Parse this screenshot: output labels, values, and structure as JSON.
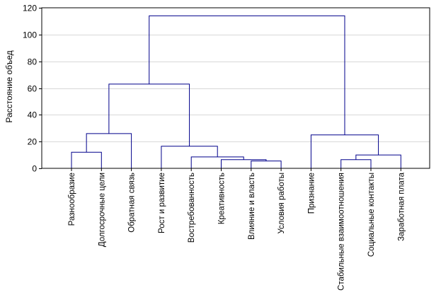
{
  "chart_data": {
    "type": "dendrogram",
    "title": "",
    "xlabel": "",
    "ylabel": "Расстояние объед",
    "ylim": [
      0,
      120
    ],
    "yticks": [
      0,
      20,
      40,
      60,
      80,
      100,
      120
    ],
    "grid": true,
    "leaves": [
      "Разнообразие",
      "Долгосрочные цели",
      "Обратная связь",
      "Рост и развитие",
      "Востребованность",
      "Креативность",
      "Влияние и власть",
      "Условия работы",
      "Признание",
      "Стабильные взаимоотношения",
      "Социальные контакты",
      "Заработная плата"
    ],
    "merges": [
      {
        "id": "m1",
        "left": "L0",
        "right": "L1",
        "height": 12
      },
      {
        "id": "m2",
        "left": "m1",
        "right": "L2",
        "height": 26
      },
      {
        "id": "m3",
        "left": "L6",
        "right": "L7",
        "height": 5.5
      },
      {
        "id": "m4",
        "left": "L5",
        "right": "m3",
        "height": 6.5
      },
      {
        "id": "m5",
        "left": "L4",
        "right": "m4",
        "height": 8.5
      },
      {
        "id": "m6",
        "left": "L3",
        "right": "m5",
        "height": 16.5
      },
      {
        "id": "m7",
        "left": "m2",
        "right": "m6",
        "height": 63
      },
      {
        "id": "m8",
        "left": "L9",
        "right": "L10",
        "height": 6.5
      },
      {
        "id": "m9",
        "left": "m8",
        "right": "L11",
        "height": 10
      },
      {
        "id": "m10",
        "left": "L8",
        "right": "m9",
        "height": 25
      },
      {
        "id": "m11",
        "left": "m7",
        "right": "m10",
        "height": 114
      }
    ],
    "line_color": "#00008b"
  }
}
